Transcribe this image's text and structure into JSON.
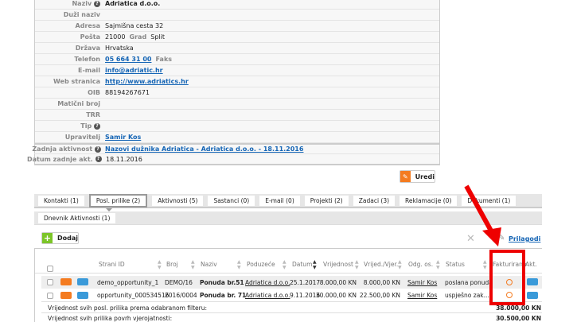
{
  "info": {
    "rows": [
      {
        "label": "Naziv",
        "value": "Adriatica d.o.o."
      },
      {
        "label": "Duži naziv",
        "value": ""
      },
      {
        "label": "Adresa",
        "value": "Sajmišna cesta 32"
      },
      {
        "label": "Pošta",
        "value": "21000",
        "extra_label": "Grad",
        "extra_value": "Split"
      },
      {
        "label": "Država",
        "value": "Hrvatska"
      },
      {
        "label": "Telefon",
        "value": "05 664 31 00",
        "extra_label": "Faks"
      },
      {
        "label": "E-mail",
        "value": "info@adriatic.hr"
      },
      {
        "label": "Web stranica",
        "value": "http://www.adriatics.hr"
      },
      {
        "label": "OIB",
        "value": "88194267671"
      },
      {
        "label": "Matični broj",
        "value": ""
      },
      {
        "label": "TRR",
        "value": ""
      },
      {
        "label": "Tip",
        "value": ""
      },
      {
        "label": "Upravitelj",
        "value": "Samir Kos"
      },
      {
        "label": "Zadnja aktivnost",
        "value": "Nazovi dužnika Adriatica - Adriatica d.o.o. - 18.11.2016"
      },
      {
        "label": "Datum zadnje akt.",
        "value": "18.11.2016"
      }
    ]
  },
  "edit_button": "Uredi",
  "tabs": [
    "Kontakti (1)",
    "Posl. prilike (2)",
    "Aktivnosti (5)",
    "Sastanci (0)",
    "E-mail (0)",
    "Projekti (2)",
    "Zadaci (3)",
    "Reklamacije (0)",
    "Dokumenti (1)"
  ],
  "active_tab": 1,
  "subtab": "Dnevnik Aktivnosti  (1)",
  "add_button": "Dodaj",
  "customize_link": "Prilagodi",
  "table": {
    "headers": [
      "Strani ID",
      "Broj",
      "Naziv",
      "Poduzeće",
      "Datum",
      "Vrijednost",
      "Vrijed./Vjer.",
      "Odg. os.",
      "Status",
      "Fakturirano",
      "Akt."
    ],
    "rows": [
      [
        "demo_opportunity_1",
        "DEMO/16",
        "Ponuda br.51",
        "Adriatica d.o.o.",
        "25.1.2017",
        "8.000,00 KN",
        "8.000,00 KN",
        "Samir Kos",
        "poslana ponuda"
      ],
      [
        "opportunity_000534516",
        "2016/0004",
        "Ponuda br. 71",
        "Adriatica d.o.o.",
        "9.11.2016",
        "30.000,00 KN",
        "22.500,00 KN",
        "Samir Kos",
        "uspješno zak..."
      ]
    ],
    "summary": [
      {
        "label": "Vrijednost svih posl. prilika prema odabranom filteru:",
        "value": "38.000,00 KN"
      },
      {
        "label": "Vrijednost svih prilika povrh vjerojatnosti:",
        "value": "30.500,00 KN"
      }
    ]
  },
  "colors": {
    "accent_orange": "#f47b20",
    "accent_blue": "#3a9ad9",
    "link": "#1565b5",
    "annotation_red": "#ee0000"
  }
}
